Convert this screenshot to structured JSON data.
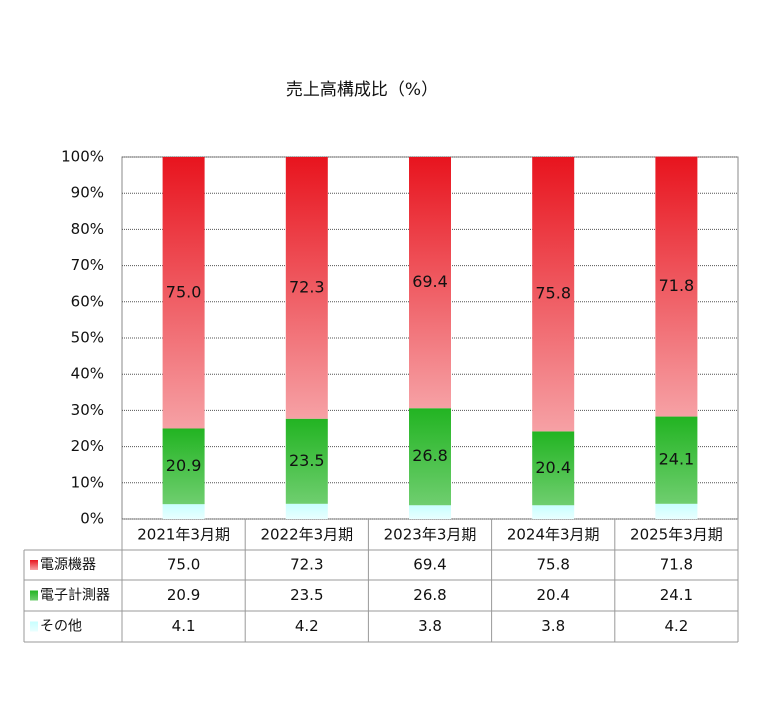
{
  "chart_data": {
    "type": "stacked-bar",
    "title": "売上高構成比（%）",
    "categories": [
      "2021年3月期",
      "2022年3月期",
      "2023年3月期",
      "2024年3月期",
      "2025年3月期"
    ],
    "series": [
      {
        "name": "電源機器",
        "color": "#e8141e",
        "values": [
          75.0,
          72.3,
          69.4,
          75.8,
          71.8
        ],
        "value_labels": [
          "75.0",
          "72.3",
          "69.4",
          "75.8",
          "71.8"
        ]
      },
      {
        "name": "電子計測器",
        "color": "#22b422",
        "values": [
          20.9,
          23.5,
          26.8,
          20.4,
          24.1
        ],
        "value_labels": [
          "20.9",
          "23.5",
          "26.8",
          "20.4",
          "24.1"
        ]
      },
      {
        "name": "その他",
        "color": "#c8ffff",
        "values": [
          4.1,
          4.2,
          3.8,
          3.8,
          4.2
        ],
        "value_labels": [
          "4.1",
          "4.2",
          "3.8",
          "3.8",
          "4.2"
        ]
      }
    ],
    "ylim": [
      0,
      100
    ],
    "yticks": [
      {
        "value": 0,
        "label": "0%"
      },
      {
        "value": 10,
        "label": "10%"
      },
      {
        "value": 20,
        "label": "20%"
      },
      {
        "value": 30,
        "label": "30%"
      },
      {
        "value": 40,
        "label": "40%"
      },
      {
        "value": 50,
        "label": "50%"
      },
      {
        "value": 60,
        "label": "60%"
      },
      {
        "value": 70,
        "label": "70%"
      },
      {
        "value": 80,
        "label": "80%"
      },
      {
        "value": 90,
        "label": "90%"
      },
      {
        "value": 100,
        "label": "100%"
      }
    ],
    "grid": true
  }
}
